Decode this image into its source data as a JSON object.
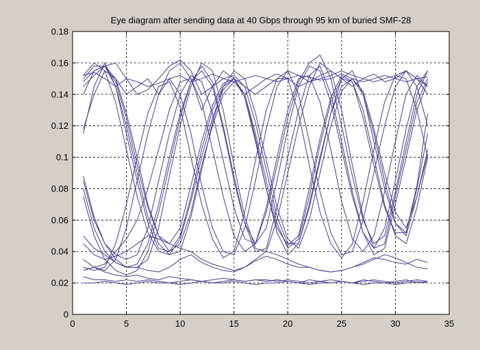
{
  "window": {
    "background": "#d4d0c8",
    "plot_background": "#ffffff",
    "trace_color": "#4b3a8c"
  },
  "chart_data": {
    "type": "line",
    "title": "Eye diagram after sending data at 40 Gbps through 95 km of buried SMF-28",
    "xlabel": "",
    "ylabel": "",
    "xlim": [
      0,
      35
    ],
    "ylim": [
      0,
      0.18
    ],
    "grid": true,
    "legend": "none",
    "x_ticks": [
      0,
      5,
      10,
      15,
      20,
      25,
      30,
      35
    ],
    "y_ticks": [
      0,
      0.02,
      0.04,
      0.06,
      0.08,
      0.1,
      0.12,
      0.14,
      0.16,
      0.18
    ],
    "x_tick_labels": [
      "0",
      "5",
      "10",
      "15",
      "20",
      "25",
      "30",
      "35"
    ],
    "y_tick_labels": [
      "0",
      "0.02",
      "0.04",
      "0.06",
      "0.08",
      "0.1",
      "0.12",
      "0.14",
      "0.16",
      "0.18"
    ],
    "x": [
      1,
      2,
      3,
      4,
      5,
      6,
      7,
      8,
      9,
      10,
      11,
      12,
      13,
      14,
      15,
      16,
      17,
      18,
      19,
      20,
      21,
      22,
      23,
      24,
      25,
      26,
      27,
      28,
      29,
      30,
      31,
      32,
      33
    ],
    "series": [
      {
        "values": [
          0.152,
          0.154,
          0.15,
          0.145,
          0.15,
          0.148,
          0.145,
          0.147,
          0.15,
          0.152,
          0.148,
          0.15,
          0.153,
          0.15,
          0.148,
          0.15,
          0.152,
          0.15,
          0.148,
          0.15,
          0.152,
          0.151,
          0.149,
          0.15,
          0.153,
          0.15,
          0.148,
          0.15,
          0.152,
          0.15,
          0.148,
          0.15,
          0.151
        ]
      },
      {
        "values": [
          0.148,
          0.155,
          0.158,
          0.15,
          0.14,
          0.145,
          0.15,
          0.14,
          0.155,
          0.16,
          0.15,
          0.13,
          0.145,
          0.155,
          0.15,
          0.14,
          0.145,
          0.15,
          0.153,
          0.15,
          0.145,
          0.148,
          0.152,
          0.155,
          0.15,
          0.145,
          0.15,
          0.153,
          0.148,
          0.15,
          0.155,
          0.15,
          0.145
        ]
      },
      {
        "values": [
          0.145,
          0.152,
          0.158,
          0.16,
          0.15,
          0.14,
          0.143,
          0.15,
          0.158,
          0.162,
          0.155,
          0.14,
          0.145,
          0.15,
          0.152,
          0.145,
          0.14,
          0.145,
          0.15,
          0.155,
          0.152,
          0.148,
          0.15,
          0.152,
          0.155,
          0.152,
          0.15,
          0.148,
          0.15,
          0.152,
          0.155,
          0.15,
          0.14
        ]
      },
      {
        "values": [
          0.024,
          0.022,
          0.022,
          0.021,
          0.022,
          0.021,
          0.022,
          0.021,
          0.02,
          0.021,
          0.022,
          0.021,
          0.02,
          0.021,
          0.022,
          0.021,
          0.022,
          0.022,
          0.021,
          0.022,
          0.021,
          0.02,
          0.021,
          0.022,
          0.021,
          0.02,
          0.021,
          0.022,
          0.021,
          0.02,
          0.021,
          0.022,
          0.021
        ]
      },
      {
        "values": [
          0.02,
          0.02,
          0.021,
          0.02,
          0.019,
          0.02,
          0.021,
          0.02,
          0.02,
          0.019,
          0.02,
          0.021,
          0.02,
          0.02,
          0.021,
          0.02,
          0.019,
          0.02,
          0.02,
          0.021,
          0.02,
          0.019,
          0.02,
          0.02,
          0.021,
          0.02,
          0.019,
          0.02,
          0.02,
          0.019,
          0.02,
          0.021,
          0.02
        ]
      },
      {
        "values": [
          0.028,
          0.03,
          0.027,
          0.025,
          0.024,
          0.025,
          0.023,
          0.022,
          0.024,
          0.023,
          0.022,
          0.021,
          0.022,
          0.023,
          0.022,
          0.021,
          0.022,
          0.021,
          0.022,
          0.021,
          0.02,
          0.022,
          0.021,
          0.02,
          0.021,
          0.02,
          0.022,
          0.021,
          0.02,
          0.021,
          0.022,
          0.02,
          0.021
        ]
      },
      {
        "values": [
          0.115,
          0.145,
          0.16,
          0.145,
          0.115,
          0.085,
          0.058,
          0.042,
          0.04,
          0.05,
          0.075,
          0.105,
          0.13,
          0.145,
          0.15,
          0.14,
          0.112,
          0.08,
          0.052,
          0.038,
          0.045,
          0.07,
          0.1,
          0.128,
          0.145,
          0.15,
          0.14,
          0.115,
          0.085,
          0.058,
          0.05,
          0.075,
          0.105
        ]
      },
      {
        "values": [
          0.118,
          0.14,
          0.155,
          0.15,
          0.128,
          0.1,
          0.07,
          0.05,
          0.04,
          0.045,
          0.065,
          0.095,
          0.12,
          0.14,
          0.148,
          0.14,
          0.115,
          0.085,
          0.058,
          0.042,
          0.048,
          0.075,
          0.108,
          0.135,
          0.15,
          0.148,
          0.13,
          0.1,
          0.07,
          0.05,
          0.045,
          0.068,
          0.1
        ]
      },
      {
        "values": [
          0.15,
          0.158,
          0.158,
          0.145,
          0.12,
          0.09,
          0.062,
          0.045,
          0.038,
          0.04,
          0.062,
          0.092,
          0.122,
          0.145,
          0.155,
          0.15,
          0.128,
          0.098,
          0.068,
          0.048,
          0.042,
          0.06,
          0.09,
          0.12,
          0.142,
          0.15,
          0.142,
          0.118,
          0.09,
          0.065,
          0.055,
          0.075,
          0.102
        ]
      },
      {
        "values": [
          0.152,
          0.16,
          0.155,
          0.135,
          0.105,
          0.075,
          0.052,
          0.04,
          0.038,
          0.048,
          0.072,
          0.1,
          0.125,
          0.143,
          0.15,
          0.145,
          0.122,
          0.092,
          0.062,
          0.045,
          0.045,
          0.068,
          0.098,
          0.128,
          0.15,
          0.155,
          0.14,
          0.11,
          0.08,
          0.058,
          0.052,
          0.08,
          0.115
        ]
      },
      {
        "values": [
          0.14,
          0.155,
          0.158,
          0.148,
          0.125,
          0.095,
          0.068,
          0.05,
          0.045,
          0.055,
          0.082,
          0.11,
          0.133,
          0.147,
          0.15,
          0.138,
          0.11,
          0.08,
          0.055,
          0.044,
          0.05,
          0.08,
          0.112,
          0.138,
          0.152,
          0.148,
          0.125,
          0.095,
          0.068,
          0.052,
          0.052,
          0.082,
          0.128
        ]
      },
      {
        "values": [
          0.085,
          0.06,
          0.045,
          0.038,
          0.035,
          0.038,
          0.055,
          0.085,
          0.115,
          0.14,
          0.152,
          0.148,
          0.128,
          0.098,
          0.068,
          0.048,
          0.045,
          0.065,
          0.095,
          0.125,
          0.148,
          0.16,
          0.165,
          0.15,
          0.12,
          0.088,
          0.06,
          0.045,
          0.05,
          0.078,
          0.11,
          0.14,
          0.155
        ]
      },
      {
        "values": [
          0.088,
          0.062,
          0.045,
          0.035,
          0.03,
          0.032,
          0.045,
          0.07,
          0.1,
          0.128,
          0.148,
          0.155,
          0.145,
          0.118,
          0.085,
          0.058,
          0.045,
          0.055,
          0.085,
          0.118,
          0.145,
          0.158,
          0.155,
          0.135,
          0.105,
          0.075,
          0.052,
          0.042,
          0.055,
          0.085,
          0.118,
          0.145,
          0.155
        ]
      },
      {
        "values": [
          0.08,
          0.055,
          0.04,
          0.033,
          0.03,
          0.03,
          0.035,
          0.055,
          0.088,
          0.12,
          0.145,
          0.16,
          0.155,
          0.13,
          0.095,
          0.062,
          0.042,
          0.04,
          0.06,
          0.09,
          0.12,
          0.145,
          0.16,
          0.155,
          0.13,
          0.095,
          0.062,
          0.042,
          0.045,
          0.075,
          0.105,
          0.135,
          0.15
        ]
      },
      {
        "values": [
          0.075,
          0.05,
          0.035,
          0.028,
          0.025,
          0.028,
          0.04,
          0.065,
          0.095,
          0.125,
          0.148,
          0.158,
          0.148,
          0.12,
          0.088,
          0.058,
          0.04,
          0.042,
          0.068,
          0.1,
          0.13,
          0.152,
          0.158,
          0.14,
          0.11,
          0.078,
          0.052,
          0.038,
          0.042,
          0.07,
          0.1,
          0.13,
          0.148
        ]
      },
      {
        "values": [
          0.028,
          0.03,
          0.028,
          0.035,
          0.055,
          0.085,
          0.115,
          0.14,
          0.15,
          0.14,
          0.115,
          0.082,
          0.055,
          0.04,
          0.038,
          0.055,
          0.085,
          0.118,
          0.145,
          0.155,
          0.14,
          0.11,
          0.078,
          0.052,
          0.038,
          0.04,
          0.06,
          0.09,
          0.12,
          0.145,
          0.155,
          0.145,
          0.12
        ]
      },
      {
        "values": [
          0.03,
          0.028,
          0.03,
          0.045,
          0.07,
          0.1,
          0.128,
          0.145,
          0.148,
          0.132,
          0.1,
          0.07,
          0.048,
          0.036,
          0.04,
          0.065,
          0.098,
          0.13,
          0.15,
          0.15,
          0.128,
          0.095,
          0.065,
          0.045,
          0.036,
          0.045,
          0.072,
          0.105,
          0.135,
          0.152,
          0.15,
          0.13,
          0.1
        ]
      },
      {
        "values": [
          0.035,
          0.03,
          0.032,
          0.04,
          0.048,
          0.06,
          0.08,
          0.105,
          0.13,
          0.148,
          0.15,
          0.135,
          0.105,
          0.075,
          0.05,
          0.04,
          0.045,
          0.068,
          0.1,
          0.13,
          0.15,
          0.152,
          0.135,
          0.105,
          0.072,
          0.048,
          0.04,
          0.05,
          0.078,
          0.11,
          0.14,
          0.152,
          0.145
        ]
      },
      {
        "values": [
          0.045,
          0.038,
          0.035,
          0.037,
          0.04,
          0.045,
          0.05,
          0.048,
          0.045,
          0.042,
          0.04,
          0.035,
          0.032,
          0.03,
          0.028,
          0.03,
          0.035,
          0.04,
          0.038,
          0.035,
          0.032,
          0.03,
          0.028,
          0.027,
          0.028,
          0.03,
          0.032,
          0.035,
          0.038,
          0.036,
          0.033,
          0.03,
          0.029
        ]
      },
      {
        "values": [
          0.05,
          0.042,
          0.038,
          0.033,
          0.03,
          0.03,
          0.028,
          0.027,
          0.03,
          0.035,
          0.038,
          0.033,
          0.03,
          0.028,
          0.027,
          0.03,
          0.034,
          0.037,
          0.035,
          0.032,
          0.03,
          0.03,
          0.028,
          0.027,
          0.028,
          0.03,
          0.033,
          0.036,
          0.035,
          0.033,
          0.032,
          0.035,
          0.033
        ]
      }
    ]
  }
}
